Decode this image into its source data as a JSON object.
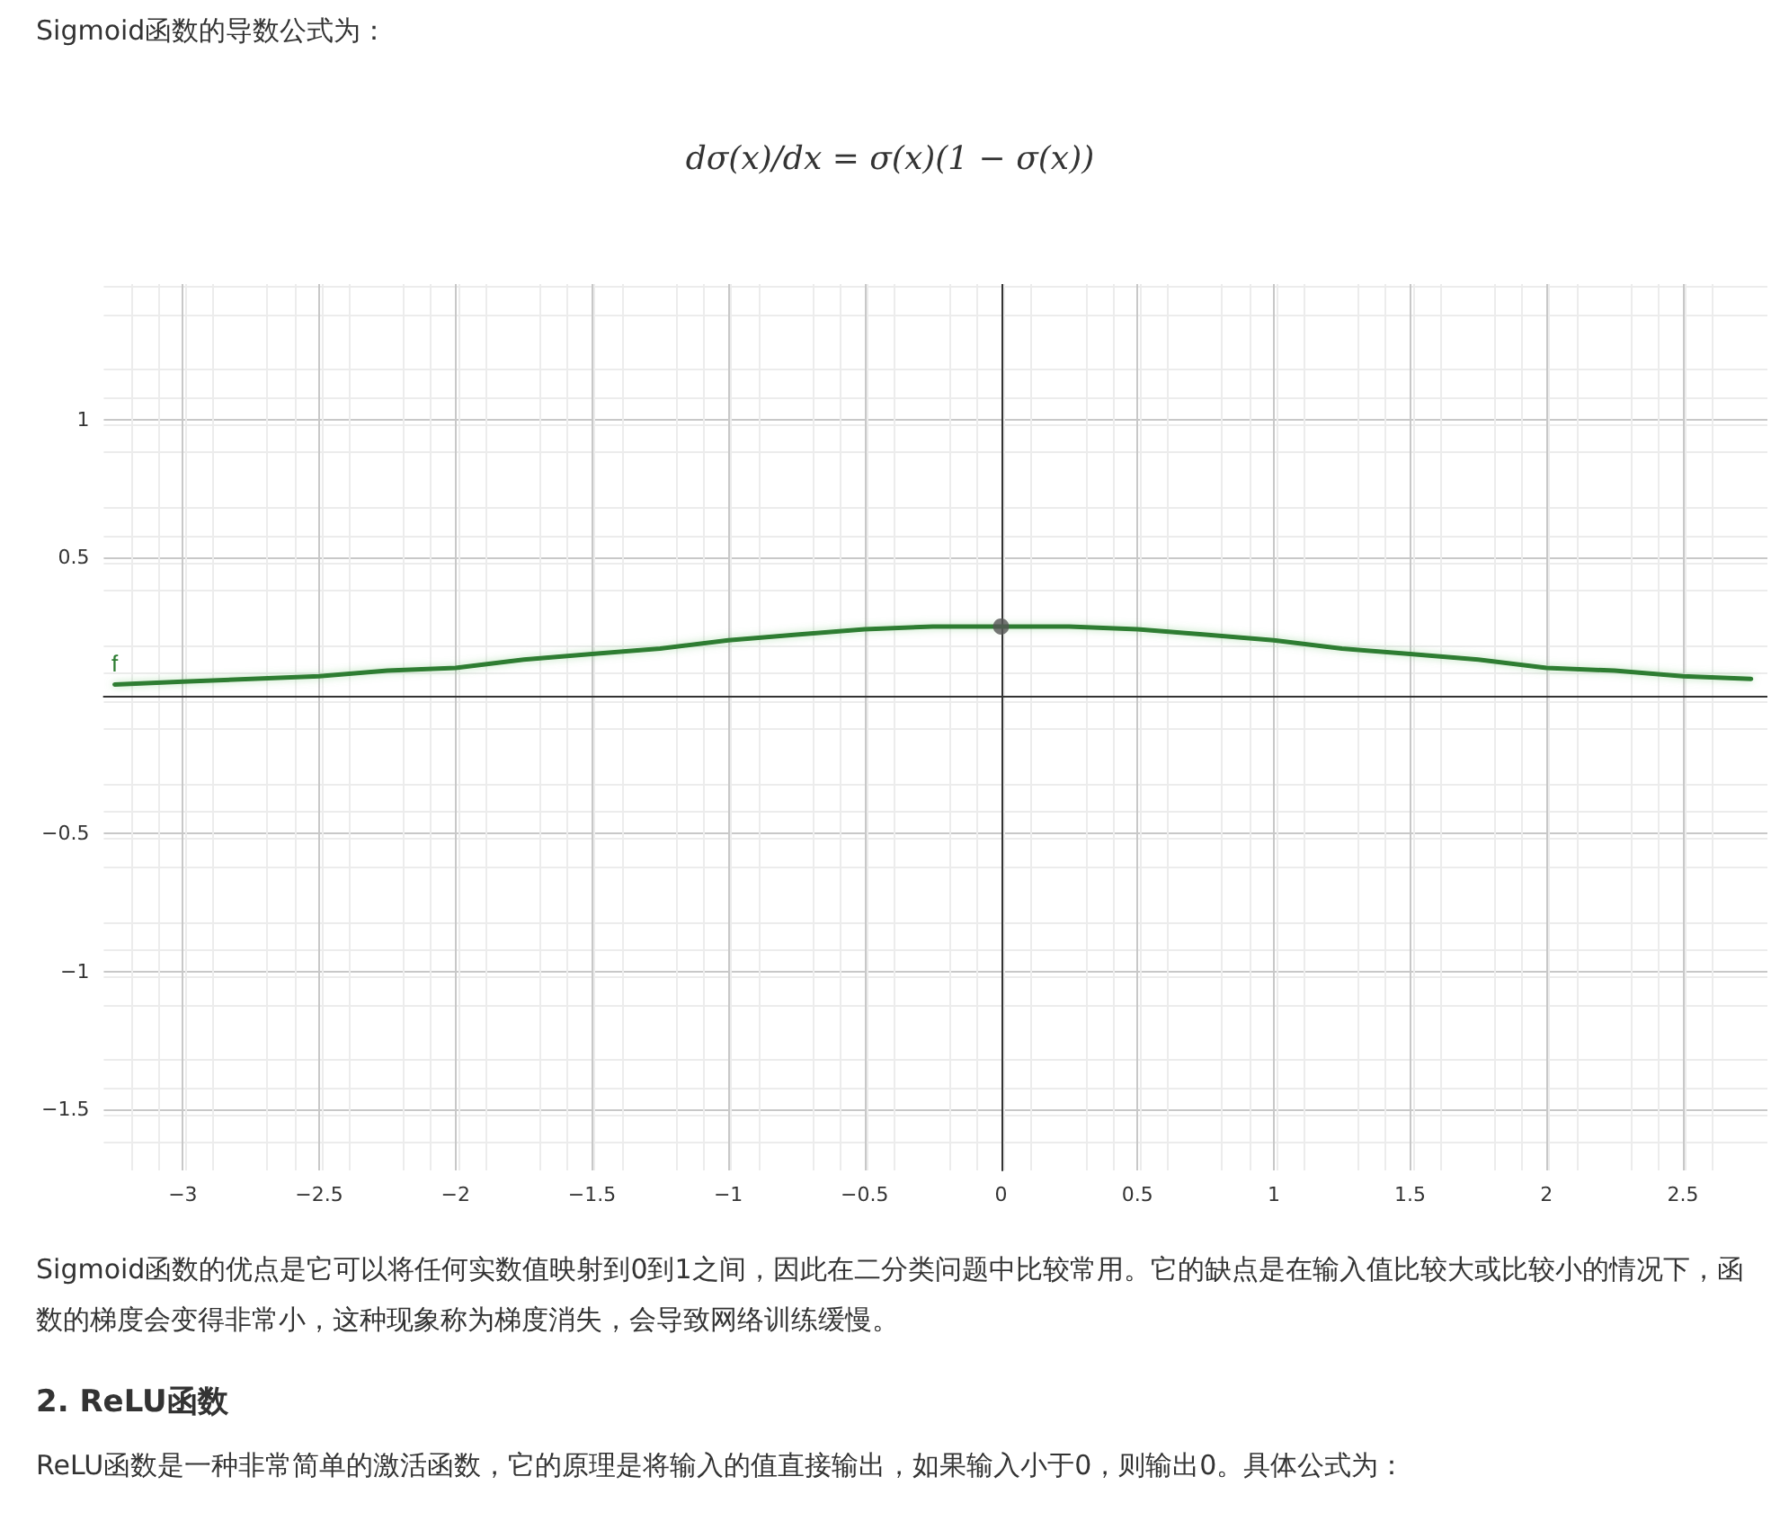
{
  "chart_data": {
    "type": "line",
    "title": "Sigmoid函数的导数公式为：",
    "subtitle": "dσ(x)/dx = σ(x)(1 − σ(x))",
    "annotations": [
      "Sigmoid函数的优点是它可以将任何实数值映射到0到1之间，因此在二分类问题中比较常用。它的缺点是在输入值比较大或比较小的情况下，函数的梯度会变得非常小，这种现象称为梯度消失，会导致网络训练缓慢。",
      "2. ReLU函数",
      "ReLU函数是一种非常简单的激活函数，它的原理是将输入的值直接输出，如果输入小于0，则输出0。具体公式为："
    ],
    "series": [
      {
        "name": "f",
        "color": "#2e7d32",
        "x": [
          -3.25,
          -3,
          -2.75,
          -2.5,
          -2.25,
          -2,
          -1.75,
          -1.5,
          -1.25,
          -1,
          -0.75,
          -0.5,
          -0.25,
          0,
          0.25,
          0.5,
          0.75,
          1,
          1.25,
          1.5,
          1.75,
          2,
          2.25,
          2.5,
          2.75
        ],
        "values": [
          0.04,
          0.05,
          0.06,
          0.07,
          0.09,
          0.1,
          0.13,
          0.15,
          0.17,
          0.2,
          0.22,
          0.24,
          0.25,
          0.25,
          0.25,
          0.24,
          0.22,
          0.2,
          0.17,
          0.15,
          0.13,
          0.1,
          0.09,
          0.07,
          0.06
        ],
        "marker": "none"
      },
      {
        "type": "scatter",
        "color": "#555555",
        "x": [
          0
        ],
        "values": [
          0.25
        ],
        "marker": "circle"
      }
    ],
    "xlim": [
      -3.29,
      2.81
    ],
    "ylim": [
      -1.72,
      1.49
    ],
    "xticks": [
      {
        "value": -3,
        "label": "−3"
      },
      {
        "value": -2.5,
        "label": "−2.5"
      },
      {
        "value": -2,
        "label": "−2"
      },
      {
        "value": -1.5,
        "label": "−1.5"
      },
      {
        "value": -1,
        "label": "−1"
      },
      {
        "value": -0.5,
        "label": "−0.5"
      },
      0,
      0.5,
      1,
      1.5,
      2,
      2.5
    ],
    "yticks": [
      {
        "value": -1.5,
        "label": "−1.5"
      },
      {
        "value": -1,
        "label": "−1"
      },
      {
        "value": -0.5,
        "label": "−0.5"
      },
      0.5,
      1
    ],
    "grid": true,
    "legend": false,
    "line_style": "solid"
  }
}
